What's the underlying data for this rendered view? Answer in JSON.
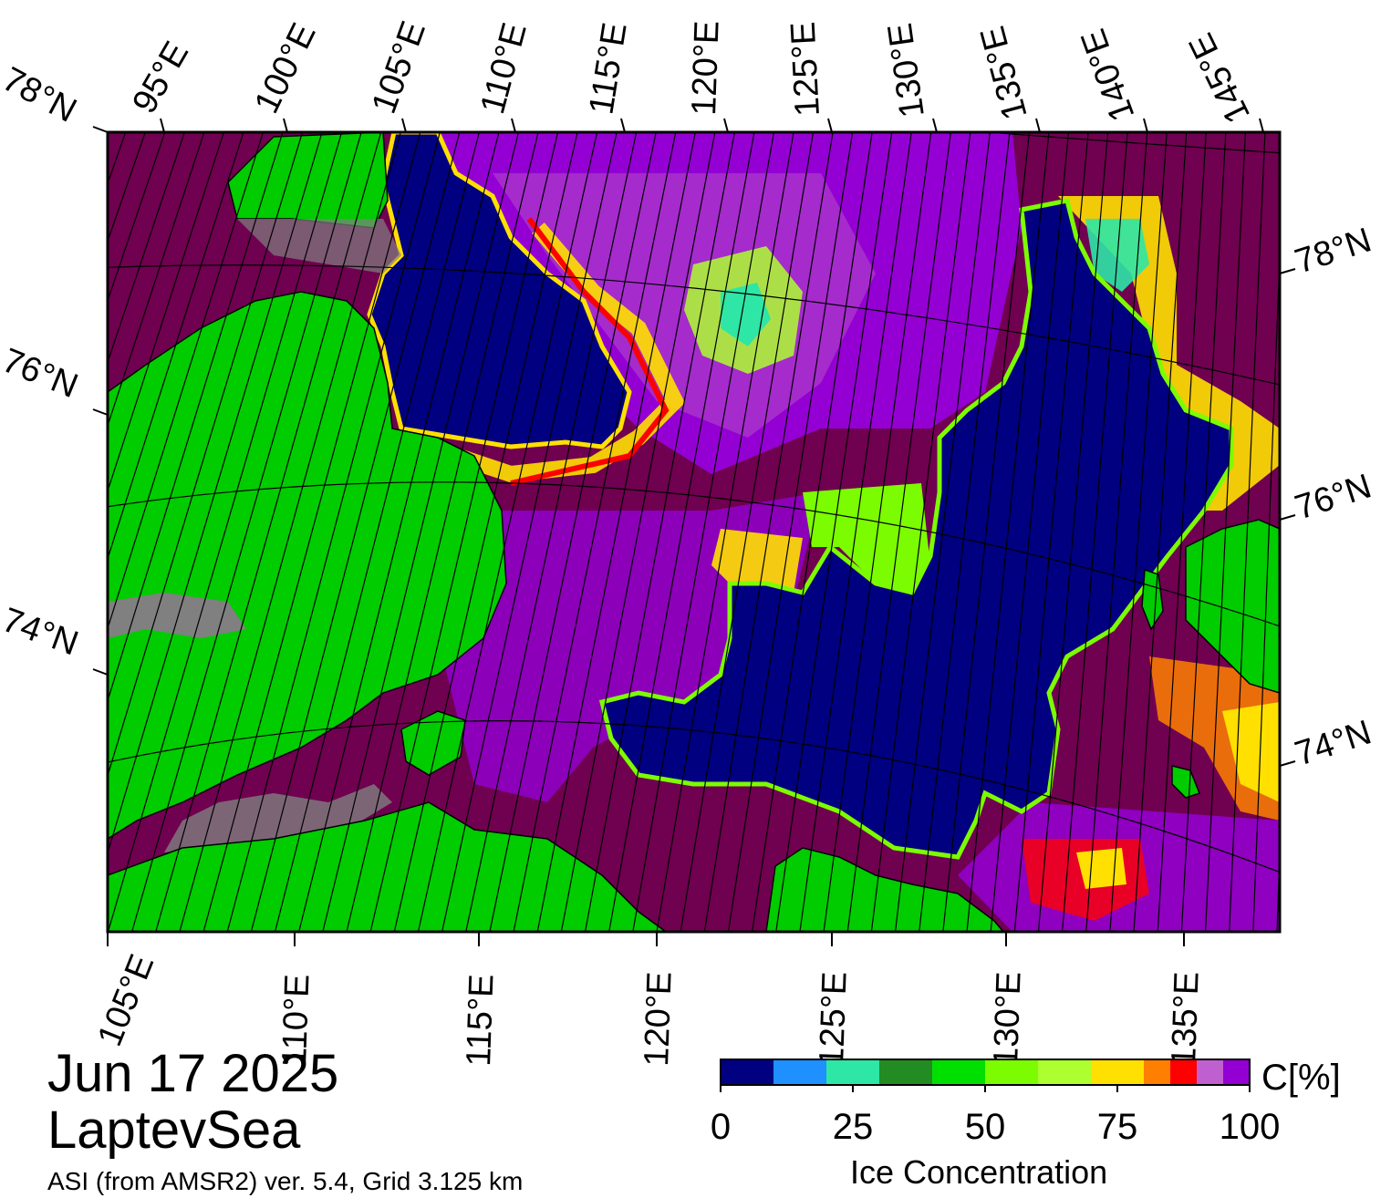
{
  "title": {
    "date": "Jun 17 2025",
    "region": "LaptevSea",
    "source": "ASI (from AMSR2) ver. 5.4,  Grid 3.125 km"
  },
  "map": {
    "top_lon_labels": [
      "95°E",
      "100°E",
      "105°E",
      "110°E",
      "115°E",
      "120°E",
      "125°E",
      "130°E",
      "135°E",
      "140°E",
      "145°E"
    ],
    "bottom_lon_labels": [
      "105°E",
      "110°E",
      "115°E",
      "120°E",
      "125°E",
      "130°E",
      "135°E"
    ],
    "left_lat_labels": [
      "78°N",
      "76°N",
      "74°N"
    ],
    "right_lat_labels": [
      "78°N",
      "76°N",
      "74°N"
    ],
    "colors": {
      "land": "#00cc00",
      "land_ice": "#808080",
      "open_water": "#000080",
      "full_ice": "#700050",
      "coast": "#000000"
    }
  },
  "colorbar": {
    "unit": "C[%]",
    "title": "Ice Concentration",
    "ticks": [
      "0",
      "25",
      "50",
      "75",
      "100"
    ],
    "tick_values": [
      0,
      25,
      50,
      75,
      100
    ],
    "range": [
      0,
      100
    ],
    "colors": [
      "#000080",
      "#1e90ff",
      "#2ee6a6",
      "#228b22",
      "#00e000",
      "#7cfc00",
      "#adff2f",
      "#ffe000",
      "#ff8000",
      "#ff0000",
      "#c060d0",
      "#9400d3"
    ]
  }
}
